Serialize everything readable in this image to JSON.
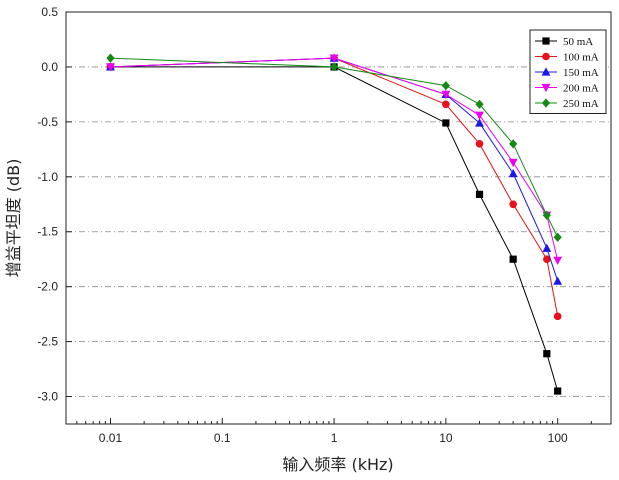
{
  "chart_data": {
    "type": "line",
    "title": "",
    "xlabel": "输入频率 (kHz)",
    "ylabel": "增益平坦度 (dB)",
    "xscale": "log",
    "xlim": [
      0.004,
      300
    ],
    "ylim": [
      -3.25,
      0.5
    ],
    "xticks": [
      {
        "value": 0.01,
        "label": "0.01"
      },
      {
        "value": 0.1,
        "label": "0.1"
      },
      {
        "value": 1,
        "label": "1"
      },
      {
        "value": 10,
        "label": "10"
      },
      {
        "value": 100,
        "label": "100"
      }
    ],
    "yticks": [
      {
        "value": 0.5,
        "label": "0.5"
      },
      {
        "value": 0.0,
        "label": "0.0"
      },
      {
        "value": -0.5,
        "label": "-0.5"
      },
      {
        "value": -1.0,
        "label": "-1.0"
      },
      {
        "value": -1.5,
        "label": "-1.5"
      },
      {
        "value": -2.0,
        "label": "-2.0"
      },
      {
        "value": -2.5,
        "label": "-2.5"
      },
      {
        "value": -3.0,
        "label": "-3.0"
      }
    ],
    "grid": "horizontal-dashdot",
    "legend_position": "top-right",
    "x": [
      0.01,
      1,
      10,
      20,
      40,
      80,
      100
    ],
    "series": [
      {
        "name": "50 mA",
        "color": "#000000",
        "marker": "square",
        "values": [
          0.0,
          0.0,
          -0.51,
          -1.16,
          -1.75,
          -2.61,
          -2.95
        ]
      },
      {
        "name": "100 mA",
        "color": "#e8101a",
        "marker": "circle",
        "values": [
          0.0,
          0.08,
          -0.34,
          -0.7,
          -1.25,
          -1.75,
          -2.27
        ]
      },
      {
        "name": "150 mA",
        "color": "#1818e8",
        "marker": "triangle-up",
        "values": [
          0.0,
          0.08,
          -0.25,
          -0.51,
          -0.97,
          -1.65,
          -1.95
        ]
      },
      {
        "name": "200 mA",
        "color": "#ee00ee",
        "marker": "triangle-down",
        "values": [
          0.0,
          0.08,
          -0.25,
          -0.44,
          -0.87,
          -1.35,
          -1.76
        ]
      },
      {
        "name": "250 mA",
        "color": "#138a13",
        "marker": "diamond",
        "values": [
          0.08,
          0.0,
          -0.17,
          -0.34,
          -0.7,
          -1.35,
          -1.55
        ]
      }
    ]
  }
}
